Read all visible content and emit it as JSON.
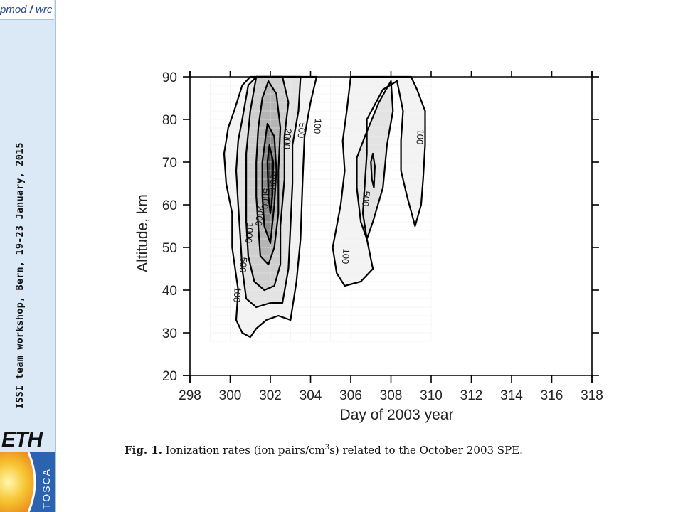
{
  "header": {
    "logo_left": "pmod",
    "logo_sep": "/",
    "logo_right": "wrc"
  },
  "sidebar": {
    "vertical_text": "ISSI team workshop, Bern, 19-23 January, 2015"
  },
  "logos": {
    "eth": "ETH",
    "tosca": "TOSCA"
  },
  "caption": {
    "label": "Fig. 1.",
    "text_before": "Ionization rates (ion pairs/cm",
    "superscript": "3",
    "text_after": "s) related to the October 2003 SPE."
  },
  "chart_data": {
    "type": "contour",
    "xlabel": "Day of 2003 year",
    "ylabel": "Altitude, km",
    "xlim": [
      298,
      318
    ],
    "ylim": [
      20,
      90
    ],
    "xticks": [
      "298",
      "300",
      "302",
      "304",
      "306",
      "308",
      "310",
      "312",
      "314",
      "316",
      "318"
    ],
    "yticks": [
      "20",
      "30",
      "40",
      "50",
      "60",
      "70",
      "80",
      "90"
    ],
    "contour_levels": [
      100,
      500,
      1000,
      2000,
      5000,
      7000
    ],
    "contour_labels": [
      {
        "text": "100",
        "x": 304.2,
        "y": 78.5
      },
      {
        "text": "500",
        "x": 303.4,
        "y": 77.5
      },
      {
        "text": "2000",
        "x": 302.7,
        "y": 75.5
      },
      {
        "text": "7000",
        "x": 302.0,
        "y": 66.0
      },
      {
        "text": "5000",
        "x": 301.6,
        "y": 61.5
      },
      {
        "text": "2000",
        "x": 301.3,
        "y": 57.5
      },
      {
        "text": "1000",
        "x": 300.8,
        "y": 53.5
      },
      {
        "text": "500",
        "x": 300.5,
        "y": 46.0
      },
      {
        "text": "100",
        "x": 300.2,
        "y": 39.0
      },
      {
        "text": "500",
        "x": 306.6,
        "y": 61.5
      },
      {
        "text": "100",
        "x": 305.6,
        "y": 48.0
      },
      {
        "text": "100",
        "x": 309.3,
        "y": 76.0
      }
    ],
    "contours": [
      {
        "level": 100,
        "points": [
          [
            300.2,
            82
          ],
          [
            300.6,
            88
          ],
          [
            301.0,
            90
          ],
          [
            304.3,
            90
          ],
          [
            304.0,
            84
          ],
          [
            303.7,
            76
          ],
          [
            303.6,
            65
          ],
          [
            303.5,
            52
          ],
          [
            303.3,
            42
          ],
          [
            303.0,
            33
          ],
          [
            302.4,
            34
          ],
          [
            301.8,
            33
          ],
          [
            301.3,
            31
          ],
          [
            301.0,
            29
          ],
          [
            300.6,
            30
          ],
          [
            300.3,
            33
          ],
          [
            300.4,
            40
          ],
          [
            300.1,
            50
          ],
          [
            300.1,
            58
          ],
          [
            299.8,
            65
          ],
          [
            299.7,
            72
          ],
          [
            299.9,
            78
          ],
          [
            300.2,
            82
          ]
        ]
      },
      {
        "level": 500,
        "points": [
          [
            300.6,
            80
          ],
          [
            300.9,
            88
          ],
          [
            301.3,
            90
          ],
          [
            303.5,
            90
          ],
          [
            303.4,
            82
          ],
          [
            303.1,
            74
          ],
          [
            303.1,
            65
          ],
          [
            303.0,
            55
          ],
          [
            302.9,
            45
          ],
          [
            302.6,
            37
          ],
          [
            302.0,
            37
          ],
          [
            301.3,
            36
          ],
          [
            300.8,
            38
          ],
          [
            300.6,
            45
          ],
          [
            300.5,
            53
          ],
          [
            300.4,
            60
          ],
          [
            300.3,
            68
          ],
          [
            300.4,
            75
          ],
          [
            300.6,
            80
          ]
        ]
      },
      {
        "level": 1000,
        "points": [
          [
            301.0,
            82
          ],
          [
            301.3,
            90
          ],
          [
            302.6,
            90
          ],
          [
            302.9,
            84
          ],
          [
            302.7,
            76
          ],
          [
            302.7,
            66
          ],
          [
            302.5,
            55
          ],
          [
            302.5,
            46
          ],
          [
            302.2,
            41
          ],
          [
            301.7,
            40
          ],
          [
            301.2,
            42
          ],
          [
            300.9,
            48
          ],
          [
            300.8,
            56
          ],
          [
            300.8,
            64
          ],
          [
            300.8,
            72
          ],
          [
            301.0,
            82
          ]
        ]
      },
      {
        "level": 2000,
        "points": [
          [
            301.6,
            85
          ],
          [
            301.9,
            89
          ],
          [
            302.3,
            86
          ],
          [
            302.5,
            78
          ],
          [
            302.4,
            68
          ],
          [
            302.4,
            58
          ],
          [
            302.2,
            50
          ],
          [
            301.9,
            46
          ],
          [
            301.5,
            48
          ],
          [
            301.4,
            55
          ],
          [
            301.3,
            62
          ],
          [
            301.3,
            70
          ],
          [
            301.4,
            78
          ],
          [
            301.6,
            85
          ]
        ]
      },
      {
        "level": 5000,
        "points": [
          [
            301.85,
            79
          ],
          [
            302.2,
            76
          ],
          [
            302.3,
            68
          ],
          [
            302.2,
            60
          ],
          [
            302.0,
            51
          ],
          [
            301.7,
            55
          ],
          [
            301.6,
            62
          ],
          [
            301.6,
            70
          ],
          [
            301.85,
            79
          ]
        ]
      },
      {
        "level": 7000,
        "points": [
          [
            301.95,
            74
          ],
          [
            302.15,
            70
          ],
          [
            302.1,
            62
          ],
          [
            302.0,
            58
          ],
          [
            301.9,
            62
          ],
          [
            301.85,
            70
          ],
          [
            301.95,
            74
          ]
        ]
      },
      {
        "level": 100,
        "points": [
          [
            306.8,
            80
          ],
          [
            307.6,
            87
          ],
          [
            308.3,
            89
          ],
          [
            308.6,
            82
          ],
          [
            308.5,
            75
          ],
          [
            308.5,
            68
          ],
          [
            308.8,
            62
          ],
          [
            309.2,
            55
          ],
          [
            309.5,
            60
          ],
          [
            309.6,
            66
          ],
          [
            309.7,
            74
          ],
          [
            309.7,
            82
          ],
          [
            309.3,
            87
          ],
          [
            309.0,
            90
          ],
          [
            306.0,
            90
          ],
          [
            305.8,
            82
          ],
          [
            305.6,
            75
          ],
          [
            305.7,
            68
          ],
          [
            305.5,
            60
          ],
          [
            305.1,
            50
          ],
          [
            305.3,
            44
          ],
          [
            305.7,
            41
          ],
          [
            306.5,
            42
          ],
          [
            307.1,
            45
          ],
          [
            306.8,
            52
          ],
          [
            306.6,
            58
          ],
          [
            306.7,
            65
          ],
          [
            306.8,
            72
          ],
          [
            306.8,
            80
          ]
        ]
      },
      {
        "level": 500,
        "points": [
          [
            306.7,
            76
          ],
          [
            307.4,
            84
          ],
          [
            308.0,
            89
          ],
          [
            308.1,
            82
          ],
          [
            307.8,
            74
          ],
          [
            307.6,
            64
          ],
          [
            307.1,
            56
          ],
          [
            306.8,
            52
          ],
          [
            306.5,
            56
          ],
          [
            306.3,
            64
          ],
          [
            306.3,
            71
          ],
          [
            306.7,
            76
          ]
        ]
      },
      {
        "level": 1000,
        "points": [
          [
            307.0,
            70
          ],
          [
            307.1,
            72
          ],
          [
            307.2,
            69
          ],
          [
            307.15,
            64
          ],
          [
            307.05,
            66
          ],
          [
            307.0,
            70
          ]
        ]
      }
    ]
  }
}
